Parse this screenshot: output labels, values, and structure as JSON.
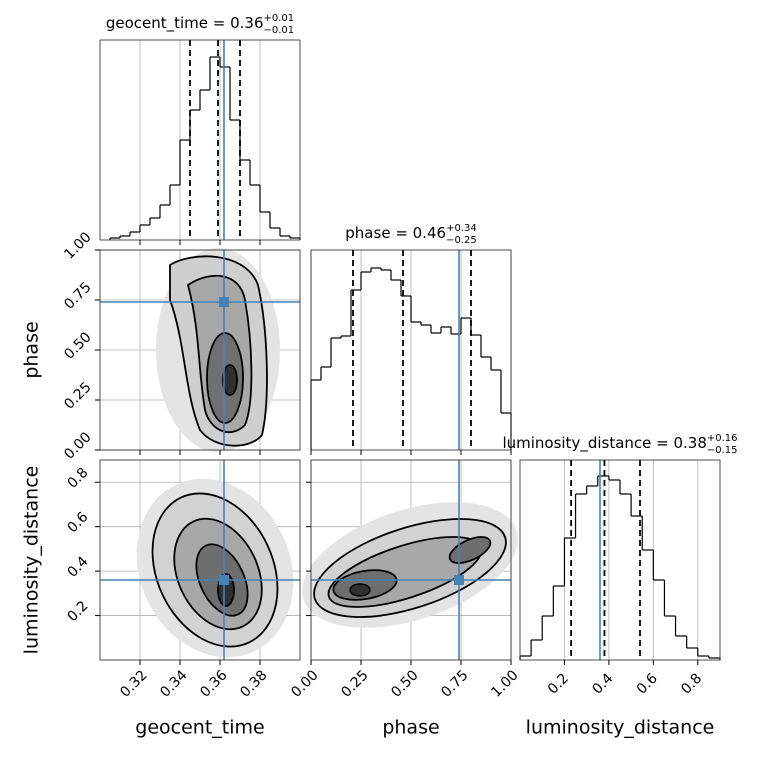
{
  "chart_data": [
    {
      "type": "histogram",
      "label": "geocent_time",
      "title": {
        "text": "geocent_time = 0.36",
        "upper": "+0.01",
        "lower": "−0.01"
      },
      "bins": [
        0.305,
        0.31,
        0.315,
        0.32,
        0.325,
        0.33,
        0.335,
        0.34,
        0.345,
        0.35,
        0.355,
        0.36,
        0.365,
        0.37,
        0.375,
        0.38,
        0.385,
        0.39,
        0.395,
        0.4
      ],
      "values": [
        0.01,
        0.02,
        0.04,
        0.075,
        0.11,
        0.175,
        0.275,
        0.5,
        0.65,
        0.75,
        0.915,
        0.865,
        0.6,
        0.4,
        0.275,
        0.14,
        0.06,
        0.02,
        0.01
      ],
      "xlim": [
        0.3,
        0.4
      ],
      "xticks": [
        0.32,
        0.34,
        0.36,
        0.38
      ],
      "ylim": [
        0,
        1
      ],
      "quantiles": [
        0.345,
        0.359,
        0.37
      ],
      "truth": 0.362,
      "color": "#000000",
      "truth_color": "#4682b4",
      "grid": true
    },
    {
      "type": "histogram",
      "label": "phase",
      "title": {
        "text": "phase = 0.46",
        "upper": "+0.34",
        "lower": "−0.25"
      },
      "bins": [
        0,
        0.05,
        0.1,
        0.15,
        0.2,
        0.25,
        0.3,
        0.35,
        0.4,
        0.45,
        0.5,
        0.55,
        0.6,
        0.65,
        0.7,
        0.75,
        0.8,
        0.85,
        0.9,
        0.95,
        1
      ],
      "values": [
        0.35,
        0.415,
        0.56,
        0.57,
        0.8,
        0.89,
        0.91,
        0.9,
        0.85,
        0.77,
        0.64,
        0.625,
        0.585,
        0.615,
        0.58,
        0.66,
        0.575,
        0.465,
        0.4,
        0.185
      ],
      "xlim": [
        0,
        1
      ],
      "xticks": [
        {
          "value": 0,
          "label": "0.00"
        },
        {
          "value": 0.25,
          "label": "0.25"
        },
        {
          "value": 0.5,
          "label": "0.50"
        },
        {
          "value": 0.75,
          "label": "0.75"
        },
        {
          "value": 1,
          "label": "1.00"
        }
      ],
      "ylim": [
        0,
        1
      ],
      "quantiles": [
        0.21,
        0.46,
        0.8
      ],
      "truth": 0.74,
      "color": "#000000",
      "truth_color": "#4682b4",
      "grid": true
    },
    {
      "type": "histogram",
      "label": "luminosity_distance",
      "title": {
        "text": "luminosity_distance = 0.38",
        "upper": "+0.16",
        "lower": "−0.15"
      },
      "bins": [
        0,
        0.05,
        0.1,
        0.15,
        0.2,
        0.25,
        0.3,
        0.35,
        0.4,
        0.45,
        0.5,
        0.55,
        0.6,
        0.65,
        0.7,
        0.75,
        0.8,
        0.85,
        0.9
      ],
      "values": [
        0.02,
        0.1,
        0.22,
        0.37,
        0.61,
        0.83,
        0.87,
        0.92,
        0.9,
        0.83,
        0.72,
        0.55,
        0.4,
        0.22,
        0.12,
        0.06,
        0.02,
        0.01
      ],
      "xlim": [
        0,
        0.9
      ],
      "xticks": [
        0.2,
        0.4,
        0.6,
        0.8
      ],
      "ylim": [
        0,
        1
      ],
      "quantiles": [
        0.23,
        0.38,
        0.54
      ],
      "truth": 0.36,
      "color": "#000000",
      "truth_color": "#4682b4",
      "grid": true
    }
  ]
}
